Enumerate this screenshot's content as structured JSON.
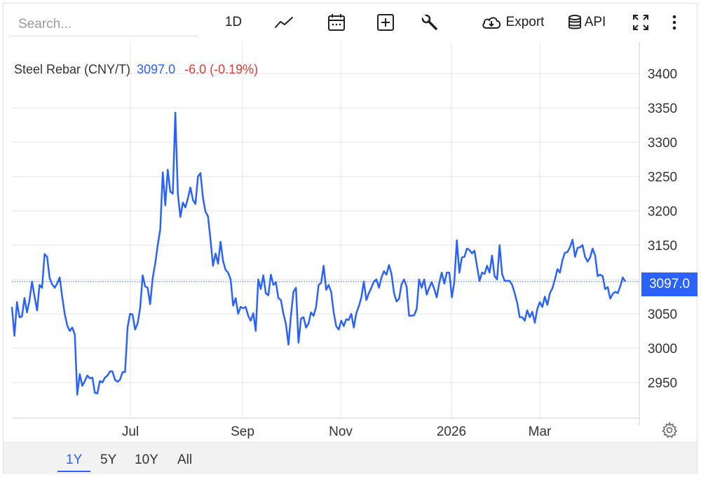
{
  "toolbar": {
    "search_placeholder": "Search...",
    "interval_label": "1D",
    "export_label": "Export",
    "api_label": "API",
    "icons": [
      "line-chart-icon",
      "calendar-icon",
      "add-icon",
      "wrench-icon",
      "cloud-download-icon",
      "database-icon",
      "fullscreen-icon",
      "more-vertical-icon"
    ]
  },
  "legend": {
    "name": "Steel Rebar (CNY/T)",
    "last": "3097.0",
    "change": "-6.0 (-0.19%)"
  },
  "price_tag": "3097.0",
  "ranges": [
    "1Y",
    "5Y",
    "10Y",
    "All"
  ],
  "active_range": "1Y",
  "colors": {
    "line": "#2962ff",
    "negative": "#e53935",
    "grid": "#e6e6e6"
  },
  "chart_data": {
    "type": "line",
    "title": "Steel Rebar (CNY/T)",
    "x_tick_labels": [
      "Jul",
      "Sep",
      "Nov",
      "2026",
      "Mar"
    ],
    "y_ticks": [
      2950,
      3000,
      3050,
      3100,
      3150,
      3200,
      3250,
      3300,
      3350,
      3400
    ],
    "ylim": [
      2900,
      3420
    ],
    "grid": true,
    "last_value": 3097.0,
    "series": [
      {
        "values": [
          3060,
          3018,
          3067,
          3045,
          3046,
          3073,
          3052,
          3070,
          3097,
          3075,
          3055,
          3092,
          3088,
          3137,
          3133,
          3102,
          3093,
          3088,
          3094,
          3103,
          3075,
          3050,
          3033,
          3025,
          3030,
          3020,
          2932,
          2962,
          2945,
          2952,
          2960,
          2956,
          2957,
          2935,
          2934,
          2952,
          2950,
          2957,
          2960,
          2966,
          2966,
          2954,
          2951,
          2954,
          2965,
          2965,
          3030,
          3050,
          3049,
          3027,
          3036,
          3058,
          3106,
          3090,
          3088,
          3064,
          3102,
          3123,
          3150,
          3173,
          3256,
          3208,
          3260,
          3228,
          3225,
          3343,
          3225,
          3191,
          3212,
          3205,
          3218,
          3234,
          3216,
          3210,
          3250,
          3255,
          3219,
          3199,
          3192,
          3158,
          3120,
          3138,
          3123,
          3155,
          3127,
          3114,
          3110,
          3100,
          3062,
          3073,
          3050,
          3060,
          3058,
          3060,
          3047,
          3040,
          3051,
          3025,
          3100,
          3086,
          3106,
          3080,
          3077,
          3107,
          3092,
          3096,
          3073,
          3070,
          3050,
          3035,
          3005,
          3048,
          3082,
          3088,
          3008,
          3043,
          3045,
          3030,
          3036,
          3052,
          3047,
          3060,
          3092,
          3095,
          3120,
          3085,
          3092,
          3082,
          3052,
          3032,
          3027,
          3040,
          3032,
          3042,
          3041,
          3050,
          3030,
          3051,
          3061,
          3074,
          3097,
          3070,
          3080,
          3088,
          3097,
          3100,
          3088,
          3103,
          3112,
          3107,
          3121,
          3108,
          3080,
          3068,
          3072,
          3093,
          3100,
          3090,
          3047,
          3047,
          3048,
          3057,
          3100,
          3088,
          3100,
          3078,
          3088,
          3096,
          3086,
          3074,
          3095,
          3110,
          3094,
          3110,
          3110,
          3074,
          3097,
          3157,
          3110,
          3132,
          3133,
          3145,
          3143,
          3138,
          3142,
          3120,
          3098,
          3110,
          3108,
          3120,
          3110,
          3135,
          3105,
          3100,
          3150,
          3108,
          3098,
          3098,
          3098,
          3092,
          3080,
          3066,
          3045,
          3045,
          3040,
          3055,
          3045,
          3053,
          3037,
          3057,
          3067,
          3060,
          3075,
          3063,
          3080,
          3087,
          3100,
          3115,
          3110,
          3128,
          3139,
          3140,
          3147,
          3158,
          3133,
          3146,
          3147,
          3150,
          3133,
          3126,
          3132,
          3145,
          3135,
          3105,
          3107,
          3105,
          3086,
          3089,
          3072,
          3079,
          3082,
          3080,
          3090,
          3103,
          3097
        ]
      }
    ]
  }
}
